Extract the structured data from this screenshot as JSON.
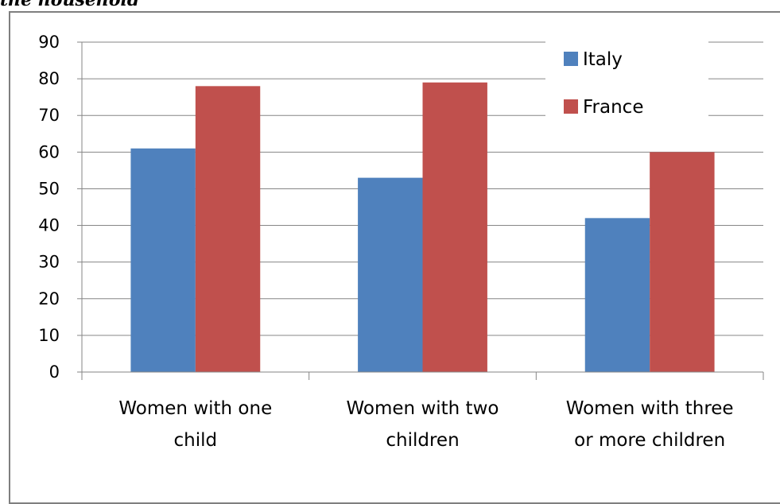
{
  "caption": "the household",
  "chart_data": {
    "type": "bar",
    "title": "",
    "xlabel": "",
    "ylabel": "",
    "ylim": [
      0,
      90
    ],
    "yticks": [
      0,
      10,
      20,
      30,
      40,
      50,
      60,
      70,
      80,
      90
    ],
    "grid": true,
    "legend_position": "top-right",
    "categories": [
      [
        "Women with one",
        "child"
      ],
      [
        "Women with two",
        "children"
      ],
      [
        "Women with three",
        "or more children"
      ]
    ],
    "series": [
      {
        "name": "Italy",
        "color": "#4f81bd",
        "values": [
          61,
          53,
          42
        ]
      },
      {
        "name": "France",
        "color": "#c0504d",
        "values": [
          78,
          79,
          60
        ]
      }
    ]
  }
}
